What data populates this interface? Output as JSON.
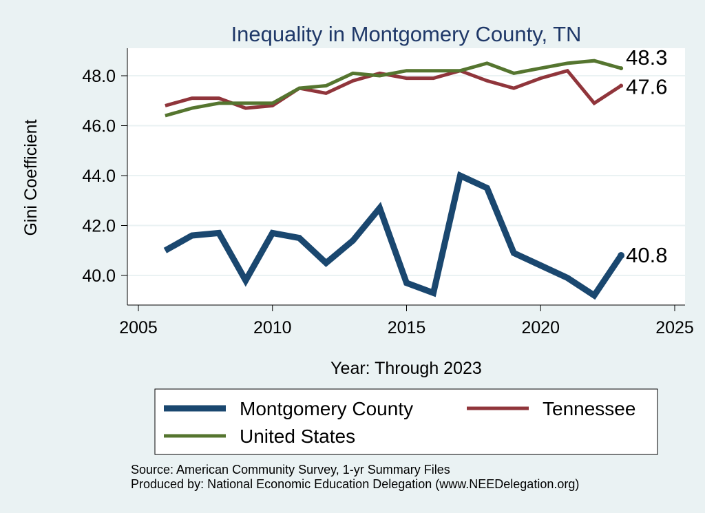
{
  "chart_data": {
    "type": "line",
    "title": "Inequality in Montgomery County, TN",
    "xlabel": "Year: Through 2023",
    "ylabel": "Gini Coefficient",
    "xlim": [
      2005,
      2025
    ],
    "ylim": [
      38.8,
      49.0
    ],
    "x_ticks": [
      "2005",
      "2010",
      "2015",
      "2020",
      "2025"
    ],
    "y_ticks": [
      "40.0",
      "42.0",
      "44.0",
      "46.0",
      "48.0"
    ],
    "grid": true,
    "legend_position": "bottom",
    "series": [
      {
        "name": "Montgomery County",
        "color": "#1a476f",
        "end_label": "40.8",
        "x": [
          2006,
          2007,
          2008,
          2009,
          2010,
          2011,
          2012,
          2013,
          2014,
          2015,
          2016,
          2017,
          2018,
          2019,
          2020,
          2021,
          2022,
          2023
        ],
        "values": [
          41.0,
          41.6,
          41.7,
          39.8,
          41.7,
          41.5,
          40.5,
          41.4,
          42.7,
          39.7,
          39.3,
          44.0,
          43.5,
          40.9,
          40.4,
          39.9,
          39.2,
          40.8
        ]
      },
      {
        "name": "Tennessee",
        "color": "#90353b",
        "end_label": "47.6",
        "x": [
          2006,
          2007,
          2008,
          2009,
          2010,
          2011,
          2012,
          2013,
          2014,
          2015,
          2016,
          2017,
          2018,
          2019,
          2020,
          2021,
          2022,
          2023
        ],
        "values": [
          46.8,
          47.1,
          47.1,
          46.7,
          46.8,
          47.5,
          47.3,
          47.8,
          48.1,
          47.9,
          47.9,
          48.2,
          47.8,
          47.5,
          47.9,
          48.2,
          46.9,
          47.6
        ]
      },
      {
        "name": "United States",
        "color": "#55752f",
        "end_label": "48.3",
        "x": [
          2006,
          2007,
          2008,
          2009,
          2010,
          2011,
          2012,
          2013,
          2014,
          2015,
          2016,
          2017,
          2018,
          2019,
          2020,
          2021,
          2022,
          2023
        ],
        "values": [
          46.4,
          46.7,
          46.9,
          46.9,
          46.9,
          47.5,
          47.6,
          48.1,
          48.0,
          48.2,
          48.2,
          48.2,
          48.5,
          48.1,
          48.3,
          48.5,
          48.6,
          48.3
        ]
      }
    ],
    "source_lines": [
      "Source: American Community Survey, 1-yr Summary Files",
      "Produced by: National Economic Education Delegation (www.NEEDelegation.org)"
    ]
  }
}
